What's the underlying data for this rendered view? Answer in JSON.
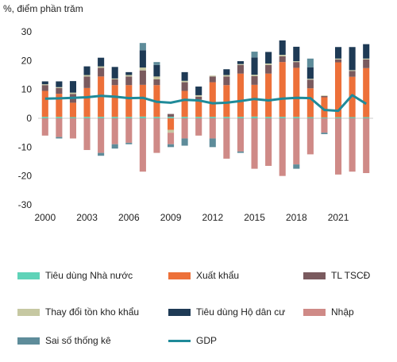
{
  "chart_data": {
    "type": "bar",
    "stacked": true,
    "title": "",
    "unit_label": "%, điểm phần trăm",
    "xlabel": "",
    "ylabel": "",
    "ylim": [
      -30,
      30
    ],
    "yticks": [
      30,
      20,
      10,
      0,
      -10,
      -20,
      -30
    ],
    "x_ticks": [
      "2000",
      "2003",
      "2006",
      "2009",
      "2012",
      "2015",
      "2018",
      "2021"
    ],
    "years": [
      2000,
      2001,
      2002,
      2003,
      2004,
      2005,
      2006,
      2007,
      2008,
      2009,
      2010,
      2011,
      2012,
      2013,
      2014,
      2015,
      2016,
      2017,
      2018,
      2019,
      2020,
      2021,
      2022,
      2023
    ],
    "grid": false,
    "legend_position": "bottom",
    "series": [
      {
        "name": "Tiêu dùng Nhà nước",
        "color": "#5fd3b8",
        "values": [
          0.5,
          0.5,
          0.4,
          0.5,
          0.5,
          0.5,
          0.5,
          0.6,
          0.5,
          0.5,
          0.5,
          0.5,
          0.5,
          0.5,
          0.5,
          0.6,
          0.5,
          0.5,
          0.5,
          0.4,
          0.3,
          0.4,
          0.4,
          0.4
        ]
      },
      {
        "name": "Xuất khẩu",
        "color": "#ed7039",
        "values": [
          9,
          8,
          5,
          10,
          14,
          11,
          11,
          11,
          11,
          -4,
          9,
          6,
          12,
          11,
          15,
          11,
          15,
          19,
          17,
          10,
          7,
          19,
          14,
          17
        ]
      },
      {
        "name": "TL TSCĐ",
        "color": "#7a5a5e",
        "values": [
          2,
          2,
          3,
          4,
          3,
          2,
          3,
          5,
          2,
          1,
          3,
          1,
          2,
          3,
          3,
          3,
          3,
          2,
          2,
          3,
          0.4,
          1,
          2,
          3
        ]
      },
      {
        "name": "Thay đổi tồn kho khẩu",
        "color": "#c6c8a2",
        "values": [
          0.3,
          0.3,
          0.5,
          0.5,
          0.5,
          0.3,
          0.5,
          1,
          1,
          -1,
          0.5,
          0.5,
          0.3,
          0.5,
          0.3,
          0.5,
          0.5,
          0.5,
          0.3,
          0.3,
          0.2,
          0.3,
          0.3,
          0.3
        ]
      },
      {
        "name": "Tiêu dùng Hộ dân cư",
        "color": "#1e3a55",
        "values": [
          1,
          2,
          4,
          3,
          3,
          4,
          1,
          6,
          4,
          0,
          3,
          3,
          0,
          2,
          1,
          6,
          4,
          5,
          5,
          4,
          0,
          4,
          8,
          5
        ]
      },
      {
        "name": "Nhập",
        "color": "#cf8a87",
        "values": [
          -6,
          -6.5,
          -7,
          -11,
          -12,
          -9,
          -8.5,
          -18.5,
          -12,
          -4,
          -7,
          -6,
          -7,
          -14,
          -11.5,
          -17.5,
          -16.5,
          -20,
          -16,
          -12.5,
          -5,
          -19.5,
          -18.5,
          -19
        ]
      },
      {
        "name": "Sai số thống kê",
        "color": "#5e8c9a",
        "values": [
          0,
          -0.5,
          0,
          0,
          -1,
          -1.5,
          -0.5,
          2.5,
          1,
          -1,
          -2.5,
          0,
          -3,
          0,
          -0.5,
          2,
          0,
          0,
          -1.5,
          3,
          -0.5,
          0,
          0,
          0
        ]
      },
      {
        "name": "GDP",
        "color": "#1f8a99",
        "kind": "line",
        "values": [
          6.8,
          6.9,
          7.1,
          7.3,
          7.8,
          7.5,
          7.0,
          7.1,
          5.7,
          5.4,
          6.4,
          6.2,
          5.2,
          5.4,
          6.0,
          6.7,
          6.2,
          6.8,
          7.1,
          7.0,
          2.9,
          2.6,
          8.0,
          5.0
        ]
      }
    ]
  }
}
